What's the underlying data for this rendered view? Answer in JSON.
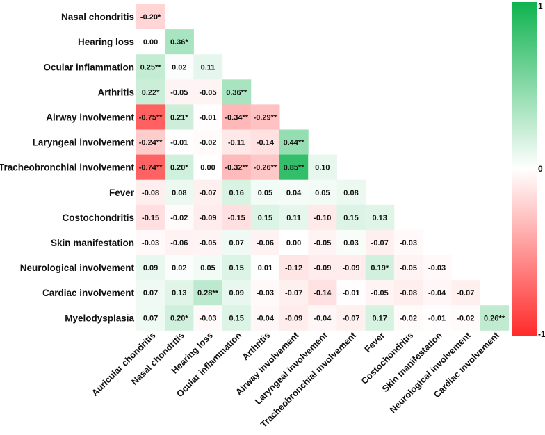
{
  "chart_data": {
    "type": "heatmap",
    "title": "",
    "xlabel": "",
    "ylabel": "",
    "row_labels": [
      "Nasal chondritis",
      "Hearing loss",
      "Ocular inflammation",
      "Arthritis",
      "Airway involvement",
      "Laryngeal involvement",
      "Tracheobronchial involvement",
      "Fever",
      "Costochondritis",
      "Skin manifestation",
      "Neurological involvement",
      "Cardiac involvement",
      "Myelodysplasia"
    ],
    "col_labels": [
      "Auricular chondritis",
      "Nasal chondritis",
      "Hearing loss",
      "Ocular inflammation",
      "Arthritis",
      "Airway involvement",
      "Laryngeal involvement",
      "Tracheobronchial involvement",
      "Fever",
      "Costochondritis",
      "Skin manifestation",
      "Neurological involvement",
      "Cardiac involvement"
    ],
    "values": [
      [
        -0.2
      ],
      [
        0.0,
        0.36
      ],
      [
        0.25,
        0.02,
        0.11
      ],
      [
        0.22,
        -0.05,
        -0.05,
        0.36
      ],
      [
        -0.75,
        0.21,
        -0.01,
        -0.34,
        -0.29
      ],
      [
        -0.24,
        -0.01,
        -0.02,
        -0.11,
        -0.14,
        0.44
      ],
      [
        -0.74,
        0.2,
        0.0,
        -0.32,
        -0.26,
        0.85,
        0.1
      ],
      [
        -0.08,
        0.08,
        -0.07,
        0.16,
        0.05,
        0.04,
        0.05,
        0.08
      ],
      [
        -0.15,
        -0.02,
        -0.09,
        -0.15,
        0.15,
        0.11,
        -0.1,
        0.15,
        0.13
      ],
      [
        -0.03,
        -0.06,
        -0.05,
        0.07,
        -0.06,
        0.0,
        -0.05,
        0.03,
        -0.07,
        -0.03
      ],
      [
        0.09,
        0.02,
        0.05,
        0.15,
        0.01,
        -0.12,
        -0.09,
        -0.09,
        0.19,
        -0.05,
        -0.03
      ],
      [
        0.07,
        0.13,
        0.28,
        0.09,
        -0.03,
        -0.07,
        -0.14,
        -0.01,
        -0.05,
        -0.08,
        -0.04,
        -0.07
      ],
      [
        0.07,
        0.2,
        -0.03,
        0.15,
        -0.04,
        -0.09,
        -0.04,
        -0.07,
        0.17,
        -0.02,
        -0.01,
        -0.02,
        0.26
      ]
    ],
    "labels": [
      [
        "-0.20*"
      ],
      [
        "0.00",
        "0.36*"
      ],
      [
        "0.25**",
        "0.02",
        "0.11"
      ],
      [
        "0.22*",
        "-0.05",
        "-0.05",
        "0.36**"
      ],
      [
        "-0.75**",
        "0.21*",
        "-0.01",
        "-0.34**",
        "-0.29**"
      ],
      [
        "-0.24**",
        "-0.01",
        "-0.02",
        "-0.11",
        "-0.14",
        "0.44**"
      ],
      [
        "-0.74**",
        "0.20*",
        "0.00",
        "-0.32**",
        "-0.26**",
        "0.85**",
        "0.10"
      ],
      [
        "-0.08",
        "0.08",
        "-0.07",
        "0.16",
        "0.05",
        "0.04",
        "0.05",
        "0.08"
      ],
      [
        "-0.15",
        "-0.02",
        "-0.09",
        "-0.15",
        "0.15",
        "0.11",
        "-0.10",
        "0.15",
        "0.13"
      ],
      [
        "-0.03",
        "-0.06",
        "-0.05",
        "0.07",
        "-0.06",
        "0.00",
        "-0.05",
        "0.03",
        "-0.07",
        "-0.03"
      ],
      [
        "0.09",
        "0.02",
        "0.05",
        "0.15",
        "0.01",
        "-0.12",
        "-0.09",
        "-0.09",
        "0.19*",
        "-0.05",
        "-0.03"
      ],
      [
        "0.07",
        "0.13",
        "0.28**",
        "0.09",
        "-0.03",
        "-0.07",
        "-0.14",
        "-0.01",
        "-0.05",
        "-0.08",
        "-0.04",
        "-0.07"
      ],
      [
        "0.07",
        "0.20*",
        "-0.03",
        "0.15",
        "-0.04",
        "-0.09",
        "-0.04",
        "-0.07",
        "0.17",
        "-0.02",
        "-0.01",
        "-0.02",
        "0.26**"
      ]
    ],
    "colorbar": {
      "ticks": [
        {
          "value": 1,
          "label": "1"
        },
        {
          "value": 0,
          "label": "0"
        },
        {
          "value": -1,
          "label": "-1"
        }
      ],
      "range": [
        -1,
        1
      ],
      "position": "right"
    },
    "colors": {
      "positive": "#0fb34f",
      "neutral": "#ffffff",
      "negative": "#ff2b2b"
    },
    "grid": false
  }
}
